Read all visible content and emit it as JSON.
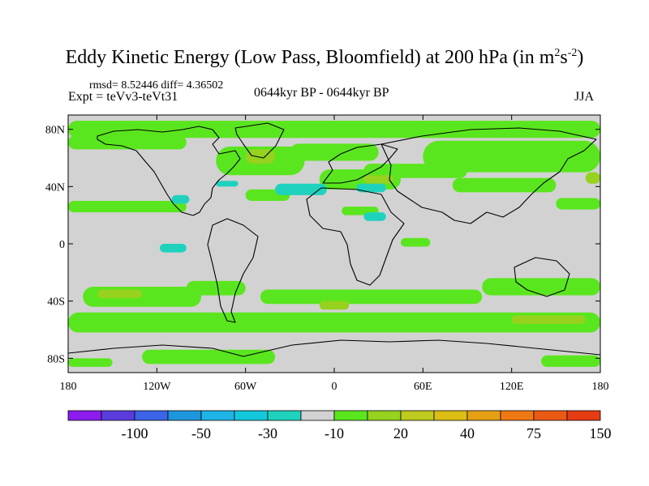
{
  "chart_data": {
    "type": "heatmap",
    "title_main": "Eddy Kinetic Energy (Low Pass, Bloomfield) at 200 hPa (in m",
    "title_sup1": "2",
    "title_s": "s",
    "title_sup2": "-2",
    "title_close": ")",
    "rmsd_text": "rmsd= 8.52446 diff= 4.36502",
    "expt_text": "Expt = teVv3-teVt31",
    "period_text": "0644kyr BP - 0644kyr BP",
    "season_text": "JJA",
    "x_range": [
      -180,
      180
    ],
    "y_range": [
      -90,
      90
    ],
    "x_ticks": [
      {
        "value": -180,
        "label": "180"
      },
      {
        "value": -120,
        "label": "120W"
      },
      {
        "value": -60,
        "label": "60W"
      },
      {
        "value": 0,
        "label": "0"
      },
      {
        "value": 60,
        "label": "60E"
      },
      {
        "value": 120,
        "label": "120E"
      },
      {
        "value": 180,
        "label": "180"
      }
    ],
    "y_ticks": [
      {
        "value": 80,
        "label": "80N"
      },
      {
        "value": 40,
        "label": "40N"
      },
      {
        "value": 0,
        "label": "0"
      },
      {
        "value": -40,
        "label": "40S"
      },
      {
        "value": -80,
        "label": "80S"
      }
    ],
    "colorbar": {
      "colors": [
        "#8c1cee",
        "#5a3cdc",
        "#3c64e6",
        "#1e96dc",
        "#1eb4e6",
        "#14c8dc",
        "#1ed2be",
        "#d2d2d2",
        "#5ae61e",
        "#96d21e",
        "#beca1e",
        "#dcbe14",
        "#e6a014",
        "#f07814",
        "#eb5a14",
        "#e63c14"
      ],
      "labels": [
        {
          "after_box": 2,
          "text": "-100"
        },
        {
          "after_box": 4,
          "text": "-50"
        },
        {
          "after_box": 6,
          "text": "-30"
        },
        {
          "after_box": 8,
          "text": "-10"
        },
        {
          "after_box": 10,
          "text": "20"
        },
        {
          "after_box": 12,
          "text": "40"
        },
        {
          "after_box": 14,
          "text": "75"
        },
        {
          "after_box": 16,
          "text": "150"
        }
      ]
    },
    "field_background": "#d2d2d2",
    "regions": [
      {
        "level": "20",
        "color": "#5ae61e",
        "lon": [
          -180,
          180
        ],
        "lat": [
          74,
          86
        ]
      },
      {
        "level": "20",
        "color": "#5ae61e",
        "lon": [
          -180,
          -100
        ],
        "lat": [
          66,
          76
        ]
      },
      {
        "level": "20",
        "color": "#5ae61e",
        "lon": [
          -80,
          -20
        ],
        "lat": [
          48,
          68
        ]
      },
      {
        "level": "20",
        "color": "#5ae61e",
        "lon": [
          -30,
          30
        ],
        "lat": [
          58,
          70
        ]
      },
      {
        "level": "20",
        "color": "#5ae61e",
        "lon": [
          -10,
          45
        ],
        "lat": [
          38,
          52
        ]
      },
      {
        "level": "20",
        "color": "#5ae61e",
        "lon": [
          20,
          90
        ],
        "lat": [
          46,
          56
        ]
      },
      {
        "level": "20",
        "color": "#5ae61e",
        "lon": [
          60,
          180
        ],
        "lat": [
          50,
          72
        ]
      },
      {
        "level": "20",
        "color": "#5ae61e",
        "lon": [
          80,
          150
        ],
        "lat": [
          36,
          46
        ]
      },
      {
        "level": "20",
        "color": "#5ae61e",
        "lon": [
          -180,
          -100
        ],
        "lat": [
          22,
          30
        ]
      },
      {
        "level": "20",
        "color": "#5ae61e",
        "lon": [
          -60,
          -30
        ],
        "lat": [
          30,
          38
        ]
      },
      {
        "level": "20",
        "color": "#5ae61e",
        "lon": [
          150,
          180
        ],
        "lat": [
          24,
          32
        ]
      },
      {
        "level": "20",
        "color": "#5ae61e",
        "lon": [
          5,
          30
        ],
        "lat": [
          20,
          26
        ]
      },
      {
        "level": "20",
        "color": "#5ae61e",
        "lon": [
          -170,
          -90
        ],
        "lat": [
          -44,
          -30
        ]
      },
      {
        "level": "20",
        "color": "#5ae61e",
        "lon": [
          -100,
          -60
        ],
        "lat": [
          -36,
          -26
        ]
      },
      {
        "level": "20",
        "color": "#5ae61e",
        "lon": [
          -50,
          100
        ],
        "lat": [
          -42,
          -32
        ]
      },
      {
        "level": "20",
        "color": "#5ae61e",
        "lon": [
          100,
          180
        ],
        "lat": [
          -36,
          -24
        ]
      },
      {
        "level": "20",
        "color": "#5ae61e",
        "lon": [
          -180,
          180
        ],
        "lat": [
          -62,
          -48
        ]
      },
      {
        "level": "20",
        "color": "#5ae61e",
        "lon": [
          -130,
          -40
        ],
        "lat": [
          -84,
          -74
        ]
      },
      {
        "level": "20",
        "color": "#5ae61e",
        "lon": [
          -180,
          -150
        ],
        "lat": [
          -86,
          -80
        ]
      },
      {
        "level": "20",
        "color": "#5ae61e",
        "lon": [
          140,
          180
        ],
        "lat": [
          -86,
          -78
        ]
      },
      {
        "level": "20",
        "color": "#5ae61e",
        "lon": [
          45,
          65
        ],
        "lat": [
          -2,
          4
        ]
      },
      {
        "level": "40",
        "color": "#96d21e",
        "lon": [
          -60,
          -40
        ],
        "lat": [
          56,
          66
        ]
      },
      {
        "level": "40",
        "color": "#96d21e",
        "lon": [
          -160,
          -130
        ],
        "lat": [
          -38,
          -32
        ]
      },
      {
        "level": "40",
        "color": "#96d21e",
        "lon": [
          -10,
          10
        ],
        "lat": [
          -46,
          -40
        ]
      },
      {
        "level": "40",
        "color": "#96d21e",
        "lon": [
          120,
          170
        ],
        "lat": [
          -56,
          -50
        ]
      },
      {
        "level": "40",
        "color": "#96d21e",
        "lon": [
          170,
          180
        ],
        "lat": [
          42,
          50
        ]
      },
      {
        "level": "40",
        "color": "#96d21e",
        "lon": [
          20,
          40
        ],
        "lat": [
          42,
          48
        ]
      },
      {
        "level": "-10",
        "color": "#1ed2be",
        "lon": [
          -40,
          -5
        ],
        "lat": [
          34,
          42
        ]
      },
      {
        "level": "-10",
        "color": "#1ed2be",
        "lon": [
          15,
          35
        ],
        "lat": [
          36,
          42
        ]
      },
      {
        "level": "-10",
        "color": "#1ed2be",
        "lon": [
          -110,
          -98
        ],
        "lat": [
          28,
          34
        ]
      },
      {
        "level": "-10",
        "color": "#1ed2be",
        "lon": [
          -118,
          -100
        ],
        "lat": [
          -6,
          0
        ]
      },
      {
        "level": "-10",
        "color": "#1ed2be",
        "lon": [
          20,
          35
        ],
        "lat": [
          16,
          22
        ]
      },
      {
        "level": "-10",
        "color": "#1ed2be",
        "lon": [
          -80,
          -65
        ],
        "lat": [
          40,
          44
        ]
      }
    ]
  }
}
